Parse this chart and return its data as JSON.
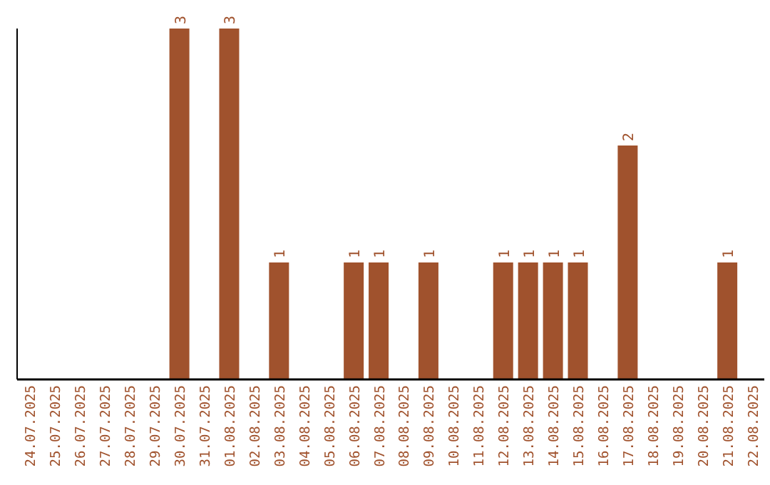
{
  "chart_data": {
    "type": "bar",
    "categories": [
      "24.07.2025",
      "25.07.2025",
      "26.07.2025",
      "27.07.2025",
      "28.07.2025",
      "29.07.2025",
      "30.07.2025",
      "31.07.2025",
      "01.08.2025",
      "02.08.2025",
      "03.08.2025",
      "04.08.2025",
      "05.08.2025",
      "06.08.2025",
      "07.08.2025",
      "08.08.2025",
      "09.08.2025",
      "10.08.2025",
      "11.08.2025",
      "12.08.2025",
      "13.08.2025",
      "14.08.2025",
      "15.08.2025",
      "16.08.2025",
      "17.08.2025",
      "18.08.2025",
      "19.08.2025",
      "20.08.2025",
      "21.08.2025",
      "22.08.2025"
    ],
    "values": [
      0,
      0,
      0,
      0,
      0,
      0,
      3,
      0,
      3,
      0,
      1,
      0,
      0,
      1,
      1,
      0,
      1,
      0,
      0,
      1,
      1,
      1,
      1,
      0,
      2,
      0,
      0,
      0,
      1,
      0
    ],
    "value_labels": [
      null,
      null,
      null,
      null,
      null,
      null,
      "3",
      null,
      "3",
      null,
      "1",
      null,
      null,
      "1",
      "1",
      null,
      "1",
      null,
      null,
      "1",
      "1",
      "1",
      "1",
      null,
      "2",
      null,
      null,
      null,
      "1",
      null
    ],
    "color": "#a0522d",
    "tick_labels": "x",
    "grid": false
  }
}
